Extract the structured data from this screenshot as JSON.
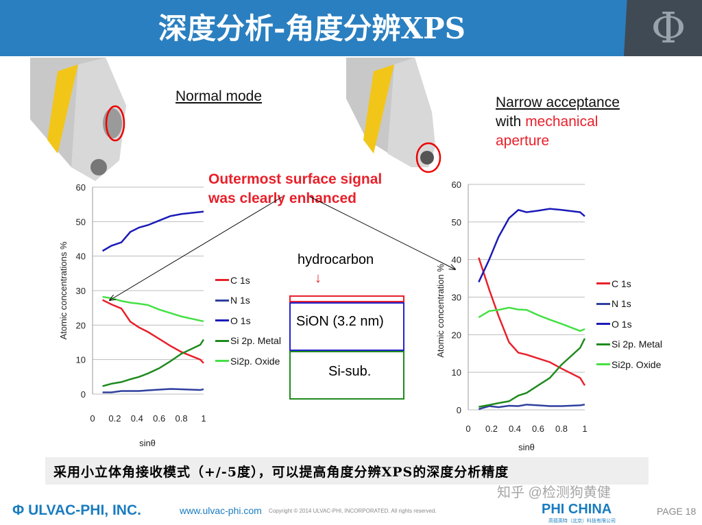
{
  "header": {
    "title": "深度分析-角度分辨XPS",
    "logo_text": "Φ"
  },
  "left": {
    "mode_label": "Normal mode"
  },
  "right": {
    "mode_line1": "Narrow acceptance",
    "mode_line2_prefix": "with ",
    "mode_line2_red": "mechanical",
    "mode_line3": "aperture"
  },
  "callout": {
    "line1": "Outermost surface signal",
    "line2": "was clearly enhanced"
  },
  "diagram": {
    "hydrocarbon": "hydrocarbon",
    "arrow": "↓",
    "sion": "SiON (3.2 nm)",
    "sub": "Si-sub."
  },
  "note": "采用小立体角接收模式（+/-5度），可以提高角度分辨XPS的深度分析精度",
  "footer": {
    "company": "Φ ULVAC-PHI, INC.",
    "url": "www.ulvac-phi.com",
    "copyright": "Copyright © 2014 ULVAC-PHI, INCORPORATED. All rights reserved.",
    "phi_china": "PHI CHINA",
    "phi_china_sub": "高德英特（北京）科技有限公司",
    "watermark": "知乎 @检测狗黄健",
    "page": "PAGE 18"
  },
  "chart_data": [
    {
      "type": "line",
      "xlabel": "sinθ",
      "ylabel": "Atomic concentrations %",
      "xlim": [
        0,
        1
      ],
      "ylim": [
        0,
        60
      ],
      "grid": true,
      "legend": "right",
      "xticks": [
        "0",
        "0.2",
        "0.4",
        "0.6",
        "0.8",
        "1"
      ],
      "yticks": [
        "0",
        "10",
        "20",
        "30",
        "40",
        "50",
        "60"
      ],
      "x": [
        0.09,
        0.17,
        0.26,
        0.34,
        0.42,
        0.5,
        0.6,
        0.7,
        0.8,
        0.97,
        1
      ],
      "series": [
        {
          "name": "C 1s",
          "color": "#e8202a",
          "values": [
            27.3,
            26,
            24.8,
            21,
            19.3,
            18,
            16,
            14,
            12.2,
            10,
            9
          ]
        },
        {
          "name": "N 1s",
          "color": "#2e3f9e",
          "values": [
            0.5,
            0.5,
            0.9,
            0.9,
            0.9,
            1.1,
            1.3,
            1.5,
            1.4,
            1.2,
            1.4
          ]
        },
        {
          "name": "O 1s",
          "color": "#1a1ab8",
          "values": [
            41.5,
            43,
            44,
            47,
            48.3,
            49,
            50.3,
            51.6,
            52.2,
            52.8,
            52.9
          ]
        },
        {
          "name": "Si 2p. Metal",
          "color": "#1e8a1e",
          "values": [
            2.3,
            3,
            3.5,
            4.3,
            5,
            6,
            7.5,
            9.5,
            11.7,
            14.3,
            15.8
          ]
        },
        {
          "name": "Si2p. Oxide",
          "color": "#44e044",
          "values": [
            28.2,
            27.8,
            27,
            26.5,
            26.2,
            25.8,
            24.5,
            23.5,
            22.5,
            21.3,
            21.1
          ]
        }
      ]
    },
    {
      "type": "line",
      "xlabel": "sinθ",
      "ylabel": "Atomic concentration %",
      "xlim": [
        0,
        1
      ],
      "ylim": [
        0,
        60
      ],
      "grid": true,
      "legend": "right",
      "xticks": [
        "0",
        "0.2",
        "0.4",
        "0.6",
        "0.8",
        "1"
      ],
      "yticks": [
        "0",
        "10",
        "20",
        "30",
        "40",
        "50",
        "60"
      ],
      "x": [
        0.09,
        0.18,
        0.26,
        0.35,
        0.43,
        0.5,
        0.6,
        0.7,
        0.8,
        0.96,
        1
      ],
      "series": [
        {
          "name": "C 1s",
          "color": "#e8202a",
          "values": [
            40.5,
            32,
            25,
            18,
            15.2,
            14.7,
            13.7,
            12.7,
            11,
            8.5,
            6.5
          ]
        },
        {
          "name": "N 1s",
          "color": "#2e3f9e",
          "values": [
            0.2,
            1,
            0.7,
            1.1,
            1,
            1.4,
            1.2,
            1,
            1,
            1.2,
            1.4
          ]
        },
        {
          "name": "O 1s",
          "color": "#1a1ab8",
          "values": [
            34,
            40,
            46,
            51,
            53.2,
            52.6,
            53,
            53.5,
            53.2,
            52.6,
            51.5
          ]
        },
        {
          "name": "Si 2p. Metal",
          "color": "#1e8a1e",
          "values": [
            0.8,
            1.3,
            1.8,
            2.3,
            3.8,
            4.5,
            6.5,
            8.5,
            12,
            16.5,
            19
          ]
        },
        {
          "name": "Si2p. Oxide",
          "color": "#44e044",
          "values": [
            24.6,
            26.3,
            26.6,
            27.2,
            26.7,
            26.6,
            25.2,
            24,
            22.9,
            21,
            21.5
          ]
        }
      ]
    }
  ]
}
